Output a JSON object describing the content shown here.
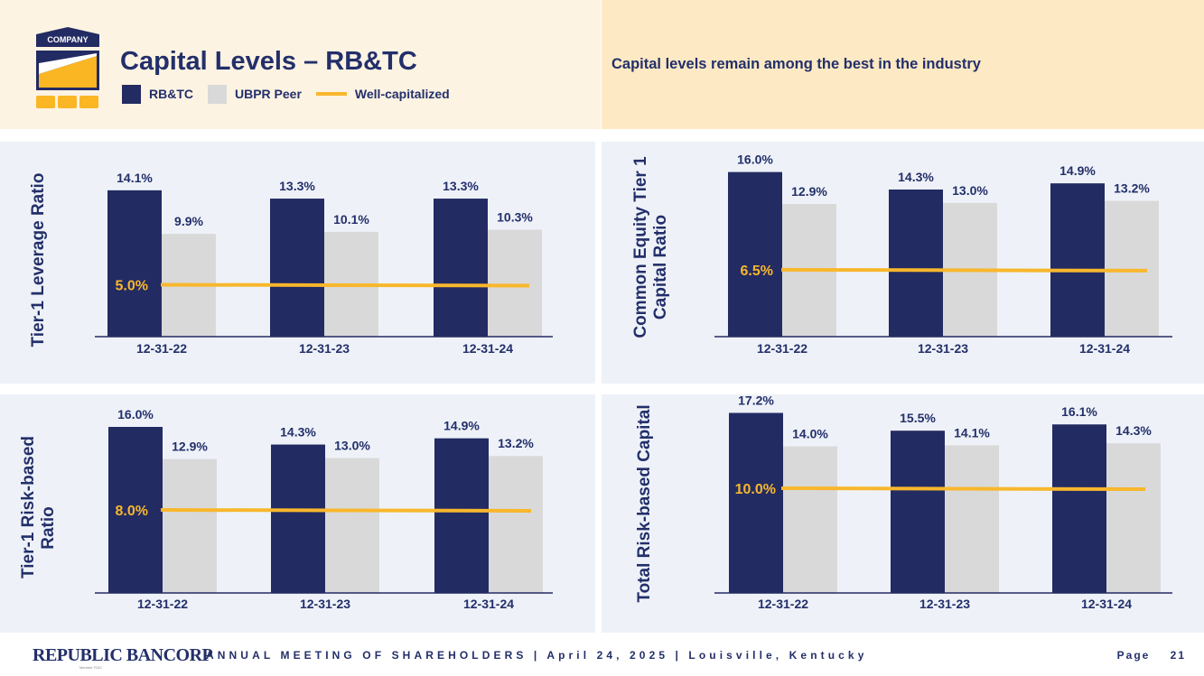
{
  "header": {
    "logo_label": "COMPANY",
    "title": "Capital Levels – RB&TC",
    "subtitle": "Capital levels remain among the best in the industry",
    "legend": [
      {
        "label": "RB&TC",
        "color": "#232b63"
      },
      {
        "label": "UBPR Peer",
        "color": "#d9d9d9"
      },
      {
        "label": "Well-capitalized",
        "color": "#f8b72c"
      }
    ]
  },
  "chart_data": [
    {
      "type": "bar",
      "title": "Tier-1 Leverage Ratio",
      "ylabel": [
        "Tier-1 Leverage Ratio"
      ],
      "categories": [
        "12-31-22",
        "12-31-23",
        "12-31-24"
      ],
      "series": [
        {
          "name": "RB&TC",
          "values": [
            14.1,
            13.3,
            13.3
          ],
          "labels": [
            "14.1%",
            "13.3%",
            "13.3%"
          ]
        },
        {
          "name": "UBPR Peer",
          "values": [
            9.9,
            10.1,
            10.3
          ],
          "labels": [
            "9.9%",
            "10.1%",
            "10.3%"
          ]
        }
      ],
      "threshold": {
        "name": "Well-capitalized",
        "value": 5.0,
        "label": "5.0%"
      },
      "ylim": [
        0,
        15
      ]
    },
    {
      "type": "bar",
      "title": "Common Equity Tier 1 Capital Ratio",
      "ylabel": [
        "Common Equity Tier 1",
        "Capital Ratio"
      ],
      "categories": [
        "12-31-22",
        "12-31-23",
        "12-31-24"
      ],
      "series": [
        {
          "name": "RB&TC",
          "values": [
            16.0,
            14.3,
            14.9
          ],
          "labels": [
            "16.0%",
            "14.3%",
            "14.9%"
          ]
        },
        {
          "name": "UBPR Peer",
          "values": [
            12.9,
            13.0,
            13.2
          ],
          "labels": [
            "12.9%",
            "13.0%",
            "13.2%"
          ]
        }
      ],
      "threshold": {
        "name": "Well-capitalized",
        "value": 6.5,
        "label": "6.5%"
      },
      "ylim": [
        0,
        16
      ]
    },
    {
      "type": "bar",
      "title": "Tier-1 Risk-based Ratio",
      "ylabel": [
        "Tier-1 Risk-based",
        "Ratio"
      ],
      "categories": [
        "12-31-22",
        "12-31-23",
        "12-31-24"
      ],
      "series": [
        {
          "name": "RB&TC",
          "values": [
            16.0,
            14.3,
            14.9
          ],
          "labels": [
            "16.0%",
            "14.3%",
            "14.9%"
          ]
        },
        {
          "name": "UBPR Peer",
          "values": [
            12.9,
            13.0,
            13.2
          ],
          "labels": [
            "12.9%",
            "13.0%",
            "13.2%"
          ]
        }
      ],
      "threshold": {
        "name": "Well-capitalized",
        "value": 8.0,
        "label": "8.0%"
      },
      "ylim": [
        0,
        18
      ]
    },
    {
      "type": "bar",
      "title": "Total Risk-based Capital",
      "ylabel": [
        "Total Risk-based Capital"
      ],
      "categories": [
        "12-31-22",
        "12-31-23",
        "12-31-24"
      ],
      "series": [
        {
          "name": "RB&TC",
          "values": [
            17.2,
            15.5,
            16.1
          ],
          "labels": [
            "17.2%",
            "15.5%",
            "16.1%"
          ]
        },
        {
          "name": "UBPR Peer",
          "values": [
            14.0,
            14.1,
            14.3
          ],
          "labels": [
            "14.0%",
            "14.1%",
            "14.3%"
          ]
        }
      ],
      "threshold": {
        "name": "Well-capitalized",
        "value": 10.0,
        "label": "10.0%"
      },
      "ylim": [
        0,
        18
      ]
    }
  ],
  "footer": {
    "brand": "REPUBLIC BANCORP",
    "brand_sub": "Member FDIC",
    "meeting": "ANNUAL MEETING OF SHAREHOLDERS  |  April 24, 2025  |  Louisville, Kentucky",
    "page_label": "Page",
    "page_number": "21"
  }
}
